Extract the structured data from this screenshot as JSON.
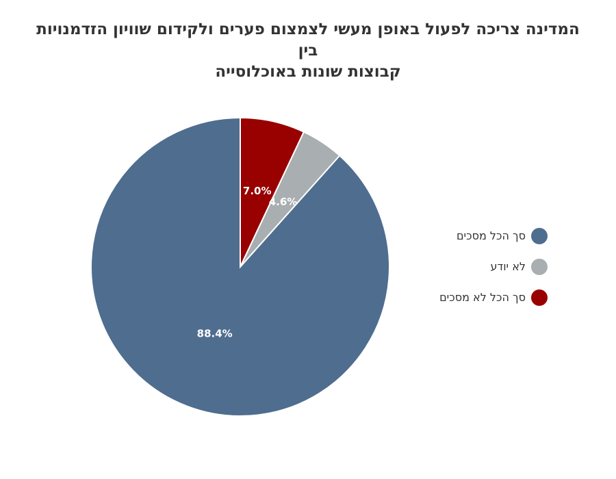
{
  "chart_data": {
    "type": "pie",
    "title": [
      "המדינה צריכה לפעול באופן מעשי לצמצום פערים ולקידום שוויון הזדמנויות בין",
      "קבוצות שונות באוכלוסייה"
    ],
    "slices": [
      {
        "name": "סך הכל מסכים",
        "value": 88.4,
        "label": "88.4%",
        "color": "#4f6d8f"
      },
      {
        "name": "לא יודע",
        "value": 4.6,
        "label": "4.6%",
        "color": "#a9aeb0"
      },
      {
        "name": "סך הכל לא מסכים",
        "value": 7.0,
        "label": "7.0%",
        "color": "#990000"
      }
    ],
    "start_angle": "12 o'clock",
    "direction": "clockwise",
    "legend_position": "right"
  }
}
